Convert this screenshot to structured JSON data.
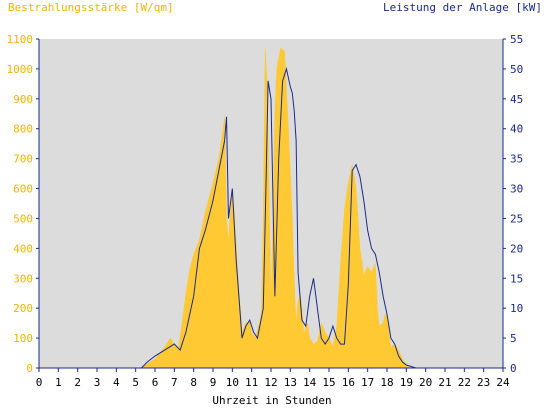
{
  "chart_data": {
    "type": "area",
    "title": "",
    "xlabel": "Uhrzeit in Stunden",
    "ylabel_left": "Bestrahlungsstärke [W/qm]",
    "ylabel_right": "Leistung der Anlage [kW]",
    "xlim": [
      0,
      24
    ],
    "ylim_left": [
      0,
      1100
    ],
    "ylim_right": [
      0,
      55
    ],
    "x_ticks": [
      "0",
      "1",
      "2",
      "3",
      "4",
      "5",
      "6",
      "7",
      "8",
      "9",
      "10",
      "11",
      "12",
      "13",
      "14",
      "15",
      "16",
      "17",
      "18",
      "19",
      "20",
      "21",
      "22",
      "23",
      "24"
    ],
    "y_left_ticks": [
      "0",
      "100",
      "200",
      "300",
      "400",
      "500",
      "600",
      "700",
      "800",
      "900",
      "1000",
      "1100"
    ],
    "y_right_ticks": [
      "0",
      "5",
      "10",
      "15",
      "20",
      "25",
      "30",
      "35",
      "40",
      "45",
      "50",
      "55"
    ],
    "grid": false,
    "colors": {
      "irradiance": "#ffc933",
      "power": "#1a2a8a",
      "left_axis_text": "#f0b400",
      "right_axis_text": "#1a2a8a",
      "plot_bg": "#dcdcdc"
    },
    "series": [
      {
        "name": "Bestrahlungsstärke [W/qm]",
        "axis": "left",
        "x": [
          0,
          5.2,
          5.5,
          6.0,
          6.5,
          6.8,
          7.0,
          7.2,
          7.4,
          7.6,
          7.8,
          8.0,
          8.3,
          8.6,
          9.0,
          9.3,
          9.5,
          9.6,
          9.7,
          9.8,
          9.9,
          10.0,
          10.1,
          10.3,
          10.5,
          10.7,
          10.9,
          11.0,
          11.2,
          11.5,
          11.6,
          11.7,
          11.8,
          11.9,
          12.0,
          12.1,
          12.2,
          12.3,
          12.5,
          12.7,
          12.9,
          13.0,
          13.1,
          13.2,
          13.3,
          13.4,
          13.5,
          13.6,
          13.7,
          13.8,
          13.9,
          14.0,
          14.2,
          14.4,
          14.6,
          14.8,
          15.0,
          15.2,
          15.4,
          15.6,
          15.8,
          16.0,
          16.2,
          16.4,
          16.5,
          16.6,
          16.8,
          17.0,
          17.2,
          17.4,
          17.5,
          17.6,
          17.8,
          17.9,
          18.0,
          18.2,
          18.4,
          18.6,
          18.8,
          19.0,
          19.2,
          19.5,
          20.0,
          24
        ],
        "values": [
          0,
          0,
          10,
          30,
          70,
          100,
          80,
          60,
          150,
          250,
          330,
          380,
          430,
          520,
          620,
          700,
          790,
          840,
          500,
          420,
          520,
          600,
          520,
          300,
          120,
          150,
          160,
          120,
          100,
          180,
          500,
          1070,
          950,
          600,
          200,
          500,
          850,
          1000,
          1070,
          1060,
          800,
          650,
          500,
          300,
          150,
          220,
          250,
          200,
          110,
          140,
          150,
          100,
          80,
          90,
          150,
          120,
          100,
          70,
          140,
          350,
          530,
          620,
          680,
          600,
          500,
          400,
          310,
          340,
          320,
          350,
          200,
          140,
          150,
          180,
          170,
          70,
          80,
          60,
          30,
          10,
          0,
          0,
          0,
          0
        ]
      },
      {
        "name": "Leistung der Anlage [kW]",
        "axis": "right",
        "x": [
          0,
          5.3,
          5.6,
          6.0,
          6.5,
          7.0,
          7.3,
          7.6,
          8.0,
          8.3,
          8.6,
          9.0,
          9.3,
          9.6,
          9.7,
          9.8,
          10.0,
          10.2,
          10.5,
          10.7,
          10.9,
          11.1,
          11.3,
          11.6,
          11.75,
          11.85,
          12.0,
          12.2,
          12.4,
          12.6,
          12.8,
          13.0,
          13.1,
          13.2,
          13.3,
          13.4,
          13.6,
          13.8,
          14.0,
          14.2,
          14.4,
          14.6,
          14.8,
          15.0,
          15.2,
          15.4,
          15.6,
          15.8,
          16.0,
          16.2,
          16.4,
          16.6,
          16.8,
          17.0,
          17.2,
          17.4,
          17.6,
          17.8,
          18.0,
          18.2,
          18.4,
          18.6,
          18.8,
          19.0,
          19.5,
          20.0,
          24
        ],
        "values": [
          0,
          0,
          1,
          2,
          3,
          4,
          3,
          6,
          12,
          20,
          23,
          28,
          33,
          38,
          42,
          25,
          30,
          18,
          5,
          7,
          8,
          6,
          5,
          10,
          32,
          48,
          45,
          12,
          35,
          48,
          50,
          47,
          46,
          43,
          38,
          16,
          8,
          7,
          12,
          15,
          10,
          5,
          4,
          5,
          7,
          5,
          4,
          4,
          14,
          33,
          34,
          32,
          28,
          23,
          20,
          19,
          16,
          12,
          9,
          5,
          4,
          2,
          1,
          0.5,
          0,
          0,
          0
        ]
      }
    ]
  }
}
